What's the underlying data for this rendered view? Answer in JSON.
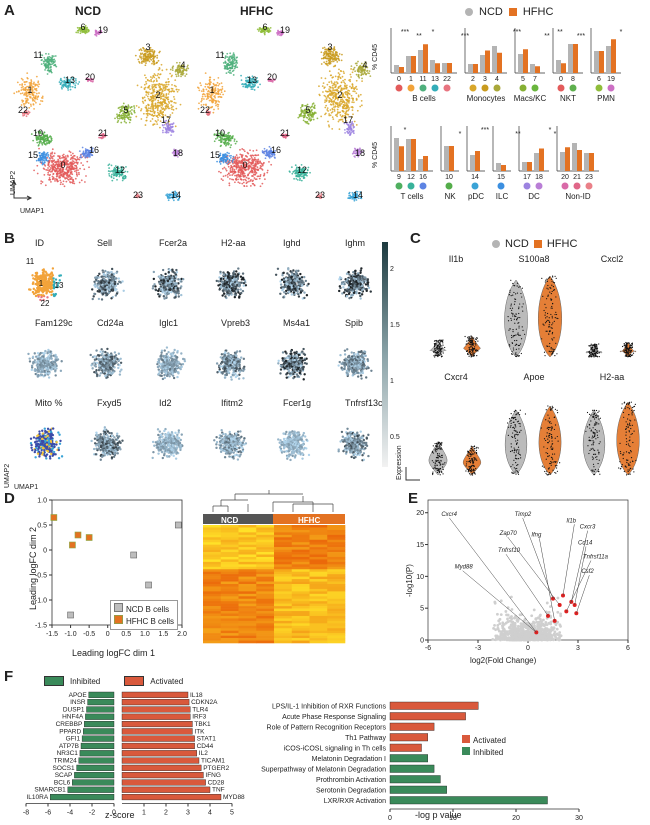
{
  "panel_labels": [
    "A",
    "B",
    "C",
    "D",
    "E",
    "F"
  ],
  "colors": {
    "ncd": "#b4b4b4",
    "hfhc": "#e37222",
    "activated": "#d9593c",
    "inhibited": "#3a8a5a",
    "volcano_sig": "#e02020"
  },
  "panelA": {
    "umap_titles": [
      "NCD",
      "HFHC"
    ],
    "axis_umap2": "UMAP2",
    "axis_umap1": "UMAP1",
    "legend": [
      "NCD",
      "HFHC"
    ],
    "ylabel": "% CD45",
    "cluster_ids": [
      "0",
      "1",
      "2",
      "3",
      "4",
      "5",
      "6",
      "10",
      "11",
      "12",
      "13",
      "14",
      "15",
      "16",
      "17",
      "18",
      "19",
      "20",
      "21",
      "22",
      "23"
    ],
    "row1_groups": [
      {
        "label": "B cells",
        "clusters": [
          "0",
          "1",
          "11",
          "13",
          "22"
        ]
      },
      {
        "label": "Monocytes",
        "clusters": [
          "2",
          "3",
          "4"
        ]
      },
      {
        "label": "Macs/KC",
        "clusters": [
          "5",
          "7"
        ]
      },
      {
        "label": "NKT",
        "clusters": [
          "0",
          "8"
        ]
      },
      {
        "label": "PMN",
        "clusters": [
          "6",
          "19"
        ]
      }
    ],
    "row2_groups": [
      {
        "label": "T cells",
        "clusters": [
          "9",
          "12",
          "16"
        ]
      },
      {
        "label": "NK",
        "clusters": [
          "10"
        ]
      },
      {
        "label": "pDC",
        "clusters": [
          "14"
        ]
      },
      {
        "label": "ILC",
        "clusters": [
          "15"
        ]
      },
      {
        "label": "DC",
        "clusters": [
          "17",
          "18"
        ]
      },
      {
        "label": "Non-ID",
        "clusters": [
          "20",
          "21",
          "23"
        ]
      }
    ],
    "sig_marks": [
      "***",
      "**",
      "*",
      "***",
      "***",
      "**",
      "**",
      "***",
      "*",
      "*",
      "*",
      "***",
      "**",
      "*"
    ]
  },
  "panelB": {
    "genes": [
      "ID",
      "Sell",
      "Fcer2a",
      "H2-aa",
      "Ighd",
      "Ighm",
      "Fam129c",
      "Cd24a",
      "Iglc1",
      "Vpreb3",
      "Ms4a1",
      "Spib",
      "Mito %",
      "Fxyd5",
      "Id2",
      "Ifitm2",
      "Fcer1g",
      "Tnfrsf13c"
    ],
    "cluster_ids": [
      "11",
      "1",
      "13",
      "22"
    ],
    "colorbar_label": "Expression",
    "colorbar_ticks": [
      "2",
      "1.5",
      "1",
      "0.5"
    ],
    "axis_umap2": "UMAP2",
    "axis_umap1": "UMAP1"
  },
  "panelC": {
    "legend": [
      "NCD",
      "HFHC"
    ],
    "genes": [
      "Il1b",
      "S100a8",
      "Cxcl2",
      "Cxcr4",
      "Apoe",
      "H2-aa"
    ]
  },
  "panelD": {
    "mds": {
      "type": "scatter",
      "xlabel": "Leading logFC dim 1",
      "ylabel": "Leading logFC dim 2",
      "xticks": [
        "-1.5",
        "-1.0",
        "-0.5",
        "0",
        "0.5",
        "1.0",
        "1.5",
        "2.0"
      ],
      "yticks": [
        "1.0",
        "0.5",
        "0",
        "-0.5",
        "-1.0",
        "-1.5"
      ],
      "xlim": [
        -1.5,
        2.0
      ],
      "ylim": [
        -1.5,
        1.0
      ],
      "series": [
        {
          "name": "NCD B cells",
          "points": [
            [
              0.7,
              -0.1
            ],
            [
              1.9,
              0.5
            ],
            [
              1.1,
              -0.7
            ],
            [
              -1.0,
              -1.3
            ]
          ]
        },
        {
          "name": "HFHC B cells",
          "points": [
            [
              -1.45,
              0.65
            ],
            [
              -0.8,
              0.3
            ],
            [
              -0.5,
              0.25
            ],
            [
              -0.95,
              0.1
            ]
          ]
        }
      ]
    },
    "heatmap_headers": [
      "NCD",
      "HFHC"
    ]
  },
  "panelE": {
    "chart_data": {
      "type": "scatter",
      "xlabel": "log2(Fold Change)",
      "ylabel": "-log10(P)",
      "xticks": [
        "-6",
        "-3",
        "0",
        "3",
        "6"
      ],
      "yticks": [
        "0",
        "5",
        "10",
        "15",
        "20"
      ],
      "xlim": [
        -6,
        6
      ],
      "ylim": [
        0,
        22
      ],
      "labels": [
        "Cxcr4",
        "Timp2",
        "Il1b",
        "Zap70",
        "Ifng",
        "Cxcr3",
        "Cd14",
        "Tnfrsf10",
        "Tnfrsf11a",
        "Myd88",
        "Csf2"
      ]
    }
  },
  "panelF": {
    "left": {
      "type": "bar",
      "legend": [
        "Inhibited",
        "Activated"
      ],
      "xlabel": "z-score",
      "xticks": [
        "-8",
        "-6",
        "-4",
        "-2",
        "0",
        "1",
        "2",
        "3",
        "4",
        "5"
      ],
      "inhibited": [
        {
          "name": "APOE",
          "value": -2.3
        },
        {
          "name": "INSR",
          "value": -2.4
        },
        {
          "name": "DUSP1",
          "value": -2.5
        },
        {
          "name": "HNF4A",
          "value": -2.6
        },
        {
          "name": "CREBBP",
          "value": -2.7
        },
        {
          "name": "PPARD",
          "value": -2.8
        },
        {
          "name": "GFI1",
          "value": -2.9
        },
        {
          "name": "ATP7B",
          "value": -3.0
        },
        {
          "name": "NR3C1",
          "value": -3.1
        },
        {
          "name": "TRIM24",
          "value": -3.2
        },
        {
          "name": "SOCS1",
          "value": -3.4
        },
        {
          "name": "SCAP",
          "value": -3.6
        },
        {
          "name": "BCL6",
          "value": -3.8
        },
        {
          "name": "SMARCB1",
          "value": -4.2
        },
        {
          "name": "IL10RA",
          "value": -5.8
        }
      ],
      "activated": [
        {
          "name": "IL18",
          "value": 3.0
        },
        {
          "name": "CDKN2A",
          "value": 3.05
        },
        {
          "name": "TLR4",
          "value": 3.1
        },
        {
          "name": "IRF3",
          "value": 3.1
        },
        {
          "name": "TBK1",
          "value": 3.2
        },
        {
          "name": "ITK",
          "value": 3.2
        },
        {
          "name": "STAT1",
          "value": 3.3
        },
        {
          "name": "CD44",
          "value": 3.3
        },
        {
          "name": "IL2",
          "value": 3.4
        },
        {
          "name": "TICAM1",
          "value": 3.5
        },
        {
          "name": "PTGER2",
          "value": 3.6
        },
        {
          "name": "IFNG",
          "value": 3.7
        },
        {
          "name": "CD28",
          "value": 3.8
        },
        {
          "name": "TNF",
          "value": 4.0
        },
        {
          "name": "MYD88",
          "value": 4.5
        }
      ]
    },
    "right": {
      "type": "bar",
      "xlabel": "-log p value",
      "xticks": [
        "0",
        "10",
        "20",
        "30"
      ],
      "legend": [
        "Activated",
        "Inhibited"
      ],
      "pathways": [
        {
          "name": "LPS/IL-1 Inhibition of RXR Functions",
          "value": 14,
          "dir": "activated"
        },
        {
          "name": "Acute Phase Response Signaling",
          "value": 12,
          "dir": "activated"
        },
        {
          "name": "Role of Pattern Recognition Receptors",
          "value": 7,
          "dir": "activated"
        },
        {
          "name": "Th1 Pathway",
          "value": 6,
          "dir": "activated"
        },
        {
          "name": "iCOS-iCOSL signaling in Th cells",
          "value": 5,
          "dir": "activated"
        },
        {
          "name": "Melatonin Degradation I",
          "value": 6,
          "dir": "inhibited"
        },
        {
          "name": "Superpathway of Melatonin Degradation",
          "value": 7,
          "dir": "inhibited"
        },
        {
          "name": "Prothrombin Activation",
          "value": 8,
          "dir": "inhibited"
        },
        {
          "name": "Serotonin Degradation",
          "value": 9,
          "dir": "inhibited"
        },
        {
          "name": "LXR/RXR Activation",
          "value": 25,
          "dir": "inhibited"
        }
      ]
    }
  }
}
